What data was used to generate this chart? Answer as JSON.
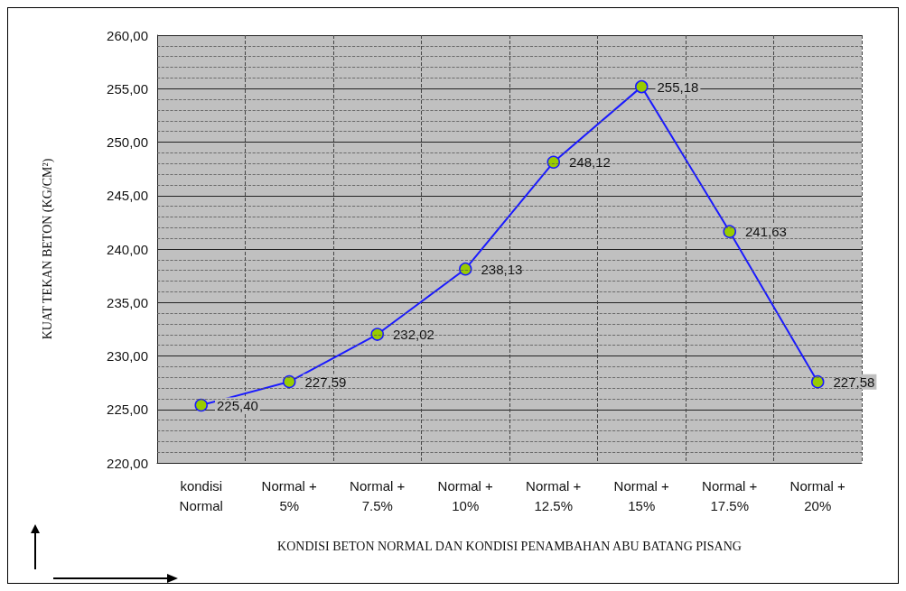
{
  "chart_data": {
    "type": "line",
    "xlabel": "KONDISI BETON NORMAL DAN KONDISI PENAMBAHAN ABU BATANG PISANG",
    "ylabel": "KUAT TEKAN BETON (KG/CM²)",
    "categories": [
      "kondisi\nNormal",
      "Normal +\n5%",
      "Normal +\n7.5%",
      "Normal +\n10%",
      "Normal +\n12.5%",
      "Normal +\n15%",
      "Normal +\n17.5%",
      "Normal +\n20%"
    ],
    "series": [
      {
        "color": "#1a1aff",
        "values": [
          225.4,
          227.59,
          232.02,
          238.13,
          248.12,
          255.18,
          241.63,
          227.58
        ],
        "value_labels": [
          "225,40",
          "227,59",
          "232,02",
          "238,13",
          "248,12",
          "255,18",
          "241,63",
          "227,58"
        ]
      }
    ],
    "ylim": [
      220,
      260
    ],
    "yticks": [
      {
        "value": 220,
        "label": "220,00"
      },
      {
        "value": 225,
        "label": "225,00"
      },
      {
        "value": 230,
        "label": "230,00"
      },
      {
        "value": 235,
        "label": "235,00"
      },
      {
        "value": 240,
        "label": "240,00"
      },
      {
        "value": 245,
        "label": "245,00"
      },
      {
        "value": 250,
        "label": "250,00"
      },
      {
        "value": 255,
        "label": "255,00"
      },
      {
        "value": 260,
        "label": "260,00"
      }
    ],
    "grid": true,
    "marker": "circle",
    "line_style": "solid"
  }
}
